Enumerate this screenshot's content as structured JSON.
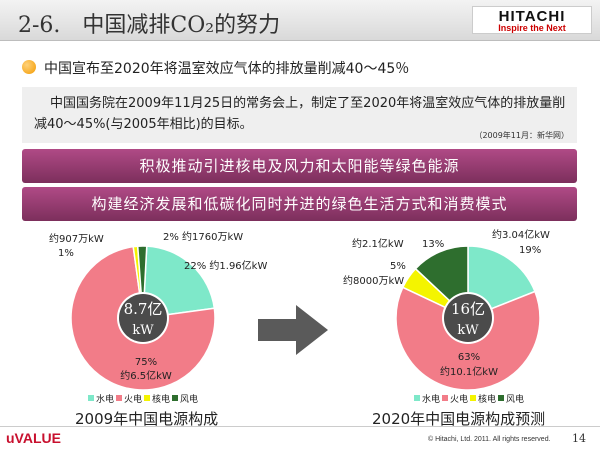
{
  "slide": {
    "title": "2-6.　中国减排CO₂的努力",
    "brand_name": "HITACHI",
    "brand_tagline": "Inspire the Next",
    "bullet": "中国宣布至2020年将温室效应气体的排放量削减40～45％",
    "quote": "中国国务院在2009年11月25日的常务会上，制定了至2020年将温室效应气体的排放量削减40～45%(与2005年相比)的目标。",
    "quote_source": "（2009年11月：新华网）",
    "banner1": "积极推动引进核电及风力和太阳能等绿色能源",
    "banner2": "构建经济发展和低碳化同时并进的绿色生活方式和消费模式",
    "footer_brand": "uVALUE",
    "copyright": "© Hitachi, Ltd. 2011. All rights reserved.",
    "page_number": "14"
  },
  "colors": {
    "hydro": "#7ee8c9",
    "thermal": "#f27c88",
    "nuclear": "#f4f400",
    "wind": "#2e6e2e",
    "banner": "#8f3a6c",
    "arrow": "#5a5a5a"
  },
  "chart_data": [
    {
      "type": "pie",
      "caption": "2009年中国电源构成",
      "center_label": [
        "8.7亿",
        "kW"
      ],
      "categories": [
        "水电",
        "火电",
        "核电",
        "风电"
      ],
      "values": [
        22,
        75,
        1,
        2
      ],
      "labels": [
        "22% 约1.96亿kW",
        "75%",
        "约6.5亿kW",
        "1%",
        "约907万kW",
        "2% 约1760万kW"
      ],
      "legend": [
        "水电",
        "火电",
        "核电",
        "风电"
      ]
    },
    {
      "type": "pie",
      "caption": "2020年中国电源构成预测",
      "center_label": [
        "16亿",
        "kW"
      ],
      "categories": [
        "水电",
        "火电",
        "核电",
        "风电"
      ],
      "values": [
        19,
        63,
        5,
        13
      ],
      "labels": [
        "约3.04亿kW",
        "19%",
        "63%",
        "约10.1亿kW",
        "5%",
        "约8000万kW",
        "约2.1亿kW",
        "13%"
      ],
      "legend": [
        "水电",
        "火电",
        "核电",
        "风电"
      ]
    }
  ]
}
